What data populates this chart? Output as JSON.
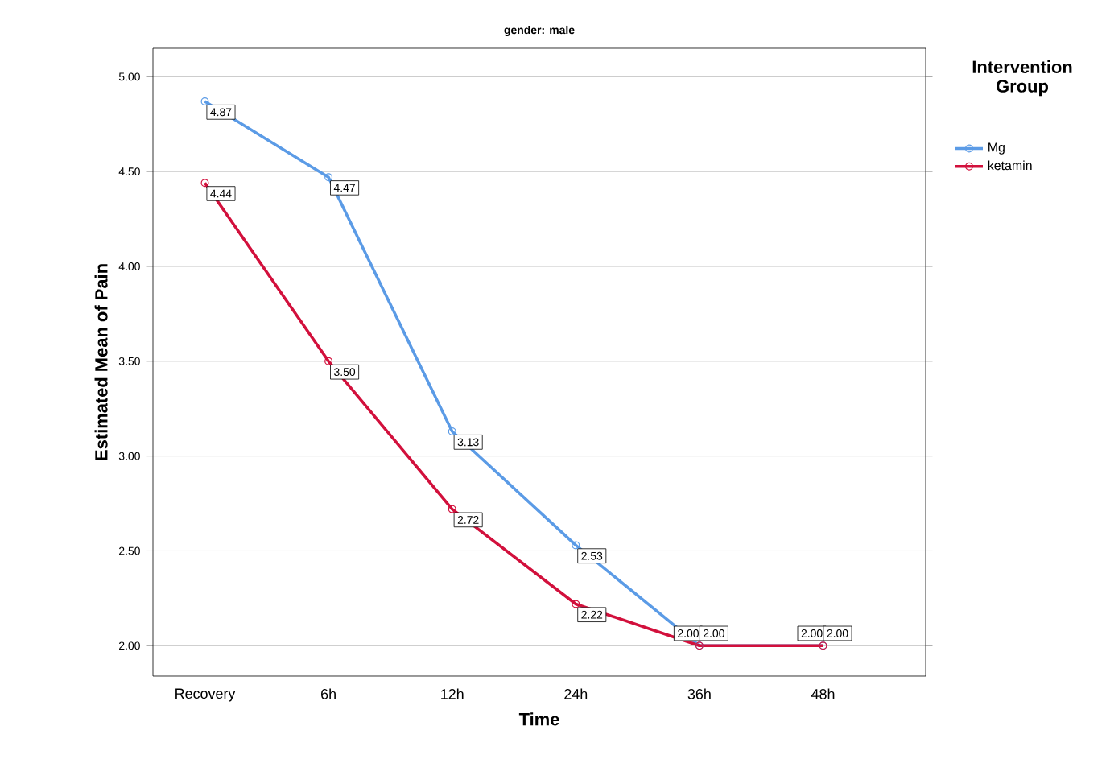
{
  "chart_data": {
    "type": "line",
    "title": "gender: male",
    "xlabel": "Time",
    "ylabel": "Estimated Mean of Pain",
    "legend_title": "Intervention Group",
    "categories": [
      "Recovery",
      "6h",
      "12h",
      "24h",
      "36h",
      "48h"
    ],
    "series": [
      {
        "name": "Mg",
        "color": "#5b9be6",
        "values": [
          4.87,
          4.47,
          3.13,
          2.53,
          2.0,
          2.0
        ],
        "value_labels": [
          "4.87",
          "4.47",
          "3.13",
          "2.53",
          "2.00",
          "2.00"
        ]
      },
      {
        "name": "ketamin",
        "color": "#d2103c",
        "values": [
          4.44,
          3.5,
          2.72,
          2.22,
          2.0,
          2.0
        ],
        "value_labels": [
          "4.44",
          "3.50",
          "2.72",
          "2.22",
          "2.00",
          "2.00"
        ]
      }
    ],
    "ylim": [
      1.84,
      5.15
    ],
    "yticks": [
      {
        "value": 2,
        "label": "2.00"
      },
      {
        "value": 2.5,
        "label": "2.50"
      },
      {
        "value": 3,
        "label": "3.00"
      },
      {
        "value": 3.5,
        "label": "3.50"
      },
      {
        "value": 4,
        "label": "4.00"
      },
      {
        "value": 4.5,
        "label": "4.50"
      },
      {
        "value": 5,
        "label": "5.00"
      }
    ],
    "grid": "y",
    "legend": "right",
    "marker": "circle",
    "line_style": "solid"
  }
}
